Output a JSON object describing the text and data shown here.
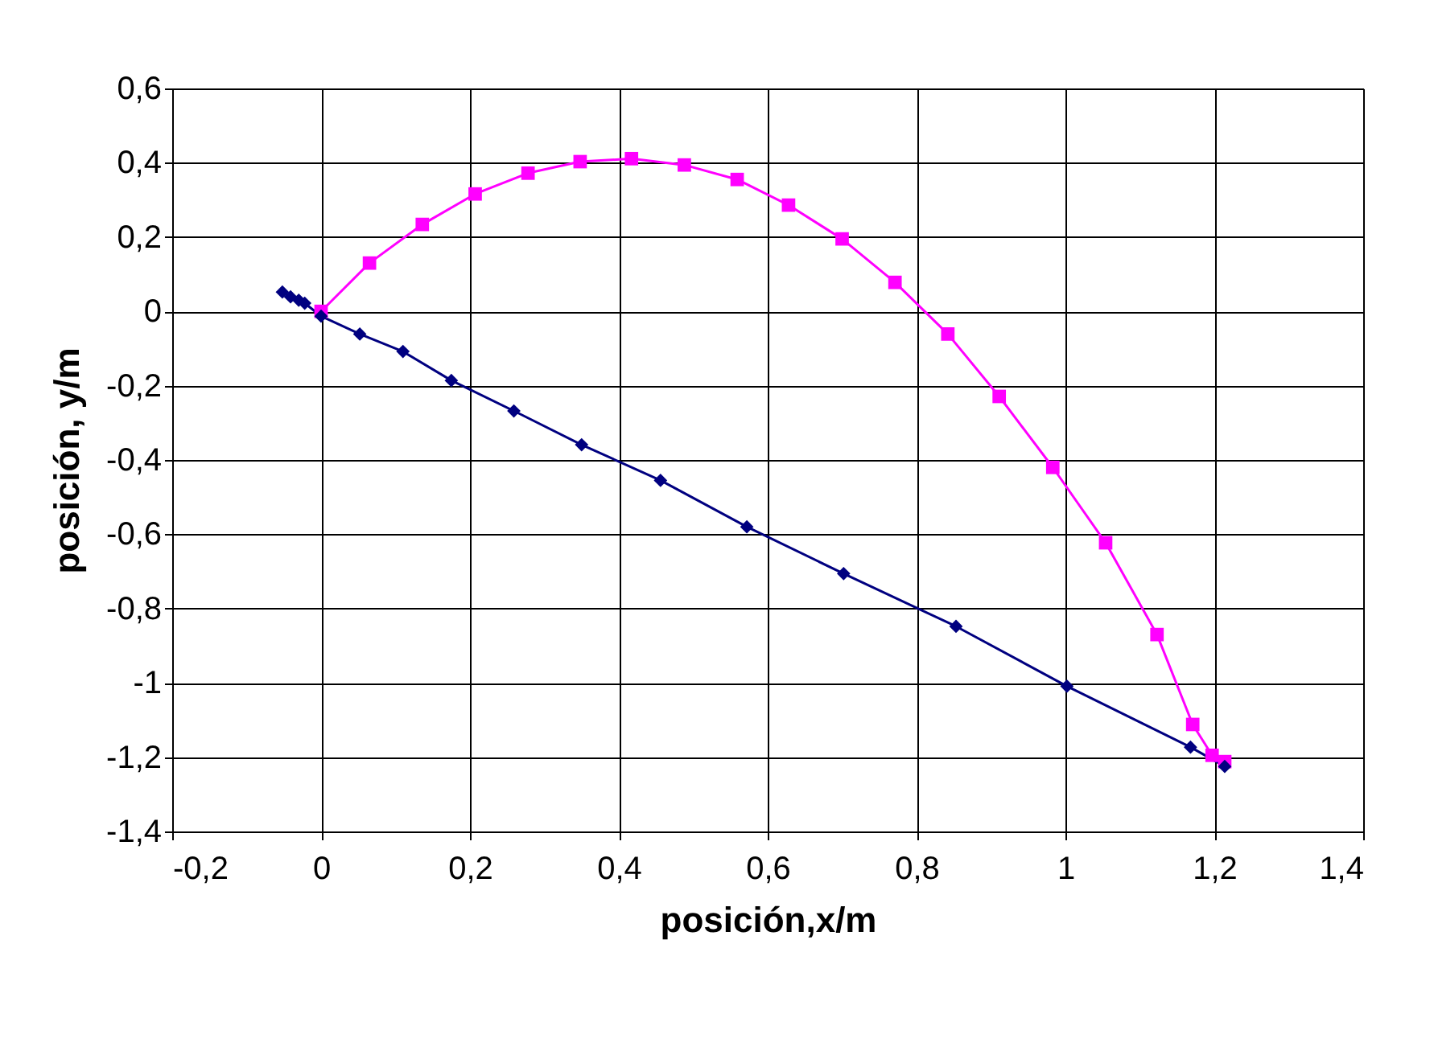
{
  "chart_data": {
    "type": "line",
    "xlabel": "posición,x/m",
    "ylabel": "posición, y/m",
    "xlim": [
      -0.2,
      1.4
    ],
    "xticks": [
      {
        "value": -0.2,
        "label": "-0,2"
      },
      {
        "value": 0,
        "label": "0"
      },
      {
        "value": 0.2,
        "label": "0,2"
      },
      {
        "value": 0.4,
        "label": "0,4"
      },
      {
        "value": 0.6,
        "label": "0,6"
      },
      {
        "value": 0.8,
        "label": "0,8"
      },
      {
        "value": 1,
        "label": "1"
      },
      {
        "value": 1.2,
        "label": "1,2"
      },
      {
        "value": 1.4,
        "label": "1,4"
      }
    ],
    "ylim": [
      -1.4,
      0.6
    ],
    "yticks": [
      {
        "value": -1.4,
        "label": "-1,4"
      },
      {
        "value": -1.2,
        "label": "-1,2"
      },
      {
        "value": -1,
        "label": "-1"
      },
      {
        "value": -0.8,
        "label": "-0,8"
      },
      {
        "value": -0.6,
        "label": "-0,6"
      },
      {
        "value": -0.4,
        "label": "-0,4"
      },
      {
        "value": -0.2,
        "label": "-0,2"
      },
      {
        "value": 0,
        "label": "0"
      },
      {
        "value": 0.2,
        "label": "0,2"
      },
      {
        "value": 0.4,
        "label": "0,4"
      },
      {
        "value": 0.6,
        "label": "0,6"
      }
    ],
    "grid": true,
    "series": [
      {
        "color": "#000080",
        "marker": "diamond",
        "x": [
          -0.052,
          -0.041,
          -0.03,
          -0.022,
          0,
          0.052,
          0.11,
          0.175,
          0.259,
          0.35,
          0.456,
          0.572,
          0.702,
          0.853,
          1.002,
          1.168,
          1.214
        ],
        "values": [
          0.052,
          0.039,
          0.03,
          0.022,
          -0.013,
          -0.061,
          -0.108,
          -0.186,
          -0.268,
          -0.359,
          -0.455,
          -0.58,
          -0.706,
          -0.848,
          -1.009,
          -1.173,
          -1.225
        ]
      },
      {
        "color": "#ff00ff",
        "marker": "square",
        "x": [
          0,
          0.065,
          0.136,
          0.207,
          0.278,
          0.348,
          0.417,
          0.488,
          0.559,
          0.628,
          0.7,
          0.771,
          0.842,
          0.911,
          0.983,
          1.054,
          1.123,
          1.171,
          1.197,
          1.214
        ],
        "values": [
          0,
          0.13,
          0.234,
          0.316,
          0.372,
          0.403,
          0.411,
          0.394,
          0.355,
          0.286,
          0.195,
          0.078,
          -0.061,
          -0.229,
          -0.42,
          -0.623,
          -0.87,
          -1.112,
          -1.195,
          -1.212
        ]
      }
    ]
  }
}
